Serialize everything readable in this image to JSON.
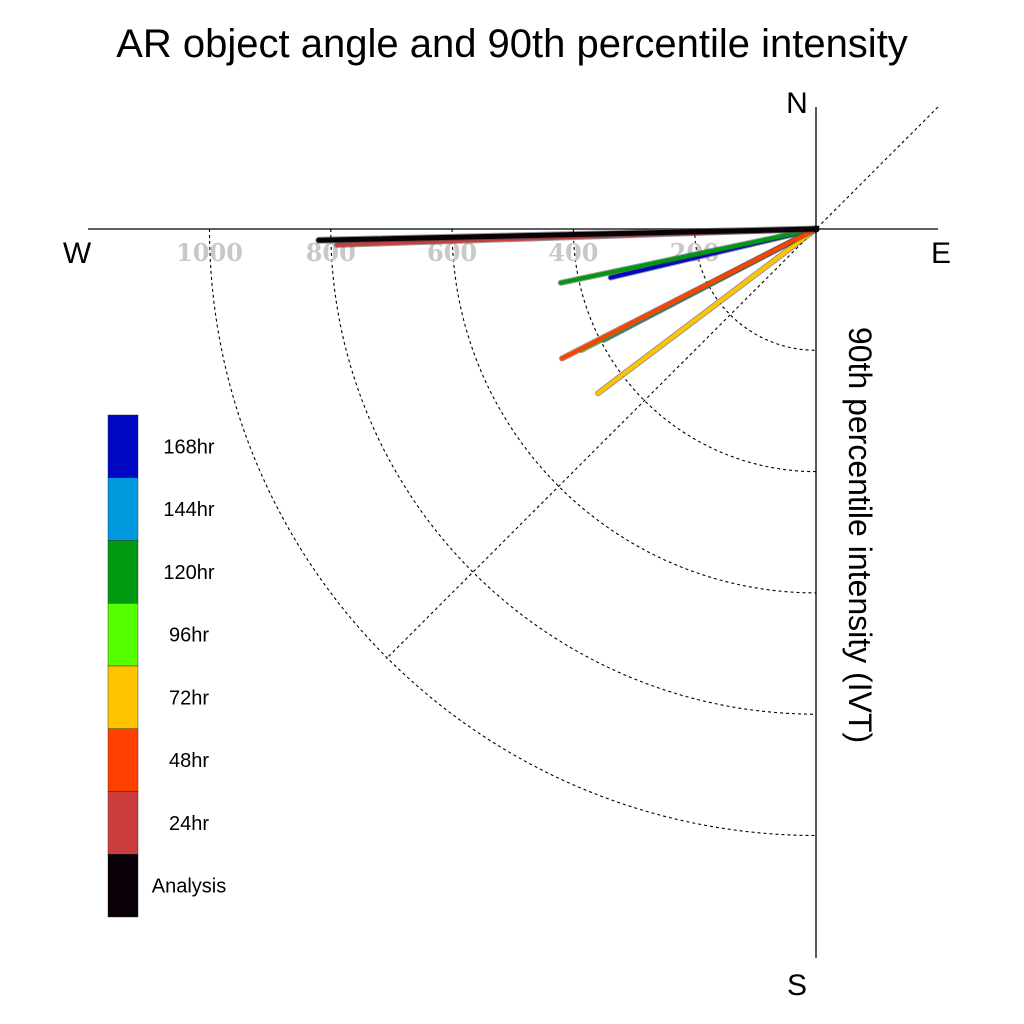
{
  "chart_data": {
    "type": "line",
    "title": "AR object angle and 90th percentile intensity",
    "radial_label": "90th percentile intensity (IVT)",
    "compass": {
      "north": "N",
      "south": "S",
      "east": "E",
      "west": "W"
    },
    "radial_ticks": [
      {
        "value": 200,
        "label": "200"
      },
      {
        "value": 400,
        "label": "400"
      },
      {
        "value": 600,
        "label": "600"
      },
      {
        "value": 800,
        "label": "800"
      },
      {
        "value": 1000,
        "label": "1000"
      }
    ],
    "rings": [
      200,
      400,
      600,
      800,
      1000
    ],
    "grid": true,
    "legend_placement": "left",
    "series": [
      {
        "name": "Analysis",
        "color": "#0a0008",
        "angle_deg_below_west": 1.3,
        "intensity": 820
      },
      {
        "name": "24hr",
        "color": "#cc3d3d",
        "angle_deg_below_west": 1.9,
        "intensity": 790
      },
      {
        "name": "48hr",
        "color": "#ff4000",
        "angle_deg_below_west": 27.0,
        "intensity": 470
      },
      {
        "name": "72hr",
        "color": "#ffc400",
        "angle_deg_below_west": 37.0,
        "intensity": 450
      },
      {
        "name": "96hr",
        "color": "#55ff00",
        "angle_deg_below_west": 27.3,
        "intensity": 435
      },
      {
        "name": "120hr",
        "color": "#009a12",
        "angle_deg_below_west": 11.9,
        "intensity": 430
      },
      {
        "name": "144hr",
        "color": "#0099dd",
        "angle_deg_below_west": 27.6,
        "intensity": 395
      },
      {
        "name": "168hr",
        "color": "#0008c4",
        "angle_deg_below_west": 13.3,
        "intensity": 348
      }
    ]
  }
}
